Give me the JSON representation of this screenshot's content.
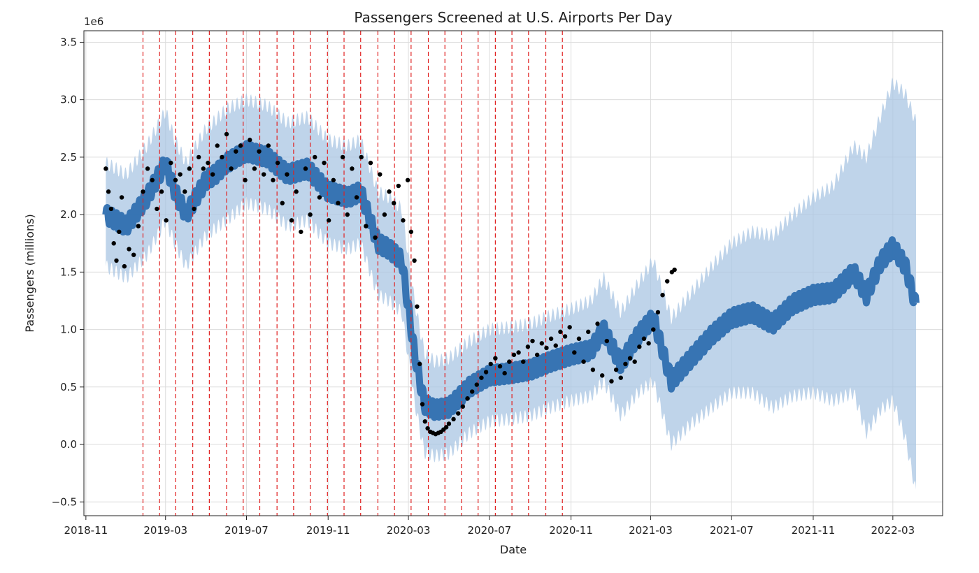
{
  "chart_data": {
    "type": "scatter",
    "title": "Passengers Screened at U.S. Airports Per Day",
    "xlabel": "Date",
    "ylabel": "Passengers (millions)",
    "y_offset_label": "1e6",
    "grid": true,
    "x_axis": {
      "type": "date",
      "range": [
        "2018-10-29",
        "2022-05-15"
      ],
      "ticks": [
        "2018-11-01",
        "2019-03-01",
        "2019-07-01",
        "2019-11-01",
        "2020-03-01",
        "2020-07-01",
        "2020-11-01",
        "2021-03-01",
        "2021-07-01",
        "2021-11-01",
        "2022-03-01"
      ],
      "tick_labels": [
        "2018-11",
        "2019-03",
        "2019-07",
        "2019-11",
        "2020-03",
        "2020-07",
        "2020-11",
        "2021-03",
        "2021-07",
        "2021-11",
        "2022-03"
      ]
    },
    "y_axis": {
      "range": [
        -0.62,
        3.6
      ],
      "ticks": [
        -0.5,
        0.0,
        0.5,
        1.0,
        1.5,
        2.0,
        2.5,
        3.0,
        3.5
      ],
      "tick_labels": [
        "−0.5",
        "0.0",
        "0.5",
        "1.0",
        "1.5",
        "2.0",
        "2.5",
        "3.0",
        "3.5"
      ]
    },
    "changepoints": [
      "2019-01-26",
      "2019-02-20",
      "2019-03-16",
      "2019-04-11",
      "2019-05-06",
      "2019-06-01",
      "2019-06-26",
      "2019-07-21",
      "2019-08-16",
      "2019-09-10",
      "2019-10-05",
      "2019-10-31",
      "2019-11-25",
      "2019-12-20",
      "2020-01-15",
      "2020-02-09",
      "2020-03-05",
      "2020-03-31",
      "2020-04-25",
      "2020-05-20",
      "2020-06-14",
      "2020-07-10",
      "2020-08-04",
      "2020-08-29",
      "2020-09-24",
      "2020-10-19"
    ],
    "series": [
      {
        "kind": "observed",
        "color": "#000000",
        "x": [
          "2018-12-01",
          "2018-12-05",
          "2018-12-09",
          "2018-12-13",
          "2018-12-17",
          "2018-12-21",
          "2018-12-25",
          "2018-12-29",
          "2019-01-05",
          "2019-01-12",
          "2019-01-19",
          "2019-01-26",
          "2019-02-02",
          "2019-02-09",
          "2019-02-16",
          "2019-02-23",
          "2019-03-02",
          "2019-03-09",
          "2019-03-16",
          "2019-03-23",
          "2019-03-30",
          "2019-04-06",
          "2019-04-13",
          "2019-04-20",
          "2019-04-27",
          "2019-05-04",
          "2019-05-11",
          "2019-05-18",
          "2019-05-25",
          "2019-06-01",
          "2019-06-08",
          "2019-06-15",
          "2019-06-22",
          "2019-06-29",
          "2019-07-06",
          "2019-07-13",
          "2019-07-20",
          "2019-07-27",
          "2019-08-03",
          "2019-08-10",
          "2019-08-17",
          "2019-08-24",
          "2019-08-31",
          "2019-09-07",
          "2019-09-14",
          "2019-09-21",
          "2019-09-28",
          "2019-10-05",
          "2019-10-12",
          "2019-10-19",
          "2019-10-26",
          "2019-11-02",
          "2019-11-09",
          "2019-11-16",
          "2019-11-23",
          "2019-11-30",
          "2019-12-07",
          "2019-12-14",
          "2019-12-21",
          "2019-12-28",
          "2020-01-04",
          "2020-01-11",
          "2020-01-18",
          "2020-01-25",
          "2020-02-01",
          "2020-02-08",
          "2020-02-15",
          "2020-02-22",
          "2020-02-29",
          "2020-03-05",
          "2020-03-10",
          "2020-03-14",
          "2020-03-18",
          "2020-03-22",
          "2020-03-26",
          "2020-03-30",
          "2020-04-03",
          "2020-04-07",
          "2020-04-11",
          "2020-04-15",
          "2020-04-19",
          "2020-04-23",
          "2020-04-27",
          "2020-05-01",
          "2020-05-08",
          "2020-05-15",
          "2020-05-22",
          "2020-05-29",
          "2020-06-05",
          "2020-06-12",
          "2020-06-19",
          "2020-06-26",
          "2020-07-03",
          "2020-07-10",
          "2020-07-17",
          "2020-07-24",
          "2020-07-31",
          "2020-08-07",
          "2020-08-14",
          "2020-08-21",
          "2020-08-28",
          "2020-09-04",
          "2020-09-11",
          "2020-09-18",
          "2020-09-25",
          "2020-10-02",
          "2020-10-09",
          "2020-10-16",
          "2020-10-23",
          "2020-10-30",
          "2020-11-06",
          "2020-11-13",
          "2020-11-20",
          "2020-11-27",
          "2020-12-04",
          "2020-12-11",
          "2020-12-18",
          "2020-12-25",
          "2021-01-01",
          "2021-01-08",
          "2021-01-15",
          "2021-01-22",
          "2021-01-29",
          "2021-02-05",
          "2021-02-12",
          "2021-02-19",
          "2021-02-26",
          "2021-03-05",
          "2021-03-12",
          "2021-03-19",
          "2021-03-26",
          "2021-04-02",
          "2021-04-06"
        ],
        "y": [
          2.4,
          2.2,
          2.05,
          1.75,
          1.6,
          1.85,
          2.15,
          1.55,
          1.7,
          1.65,
          1.9,
          2.2,
          2.4,
          2.3,
          2.05,
          2.2,
          1.95,
          2.45,
          2.3,
          2.35,
          2.2,
          2.4,
          2.05,
          2.5,
          2.4,
          2.45,
          2.35,
          2.6,
          2.5,
          2.7,
          2.4,
          2.55,
          2.6,
          2.3,
          2.65,
          2.4,
          2.55,
          2.35,
          2.6,
          2.3,
          2.45,
          2.1,
          2.35,
          1.95,
          2.2,
          1.85,
          2.4,
          2.0,
          2.5,
          2.15,
          2.45,
          1.95,
          2.3,
          2.1,
          2.5,
          2.0,
          2.4,
          2.15,
          2.5,
          1.9,
          2.45,
          1.8,
          2.35,
          2.0,
          2.2,
          2.1,
          2.25,
          1.95,
          2.3,
          1.85,
          1.6,
          1.2,
          0.7,
          0.35,
          0.2,
          0.14,
          0.11,
          0.1,
          0.09,
          0.1,
          0.11,
          0.13,
          0.15,
          0.18,
          0.22,
          0.27,
          0.33,
          0.4,
          0.46,
          0.52,
          0.58,
          0.63,
          0.7,
          0.75,
          0.68,
          0.62,
          0.72,
          0.78,
          0.8,
          0.72,
          0.85,
          0.9,
          0.78,
          0.88,
          0.84,
          0.92,
          0.86,
          0.98,
          0.94,
          1.02,
          0.8,
          0.92,
          0.72,
          0.98,
          0.65,
          1.05,
          0.6,
          0.9,
          0.55,
          0.65,
          0.58,
          0.7,
          0.75,
          0.72,
          0.85,
          0.92,
          0.88,
          1.0,
          1.15,
          1.3,
          1.42,
          1.5,
          1.52
        ]
      },
      {
        "kind": "forecast",
        "name": "yhat",
        "color": "#2f6fb0",
        "x": [
          "2018-12-01",
          "2019-01-01",
          "2019-02-01",
          "2019-03-01",
          "2019-03-15",
          "2019-04-01",
          "2019-05-01",
          "2019-05-15",
          "2019-06-01",
          "2019-07-01",
          "2019-08-01",
          "2019-09-01",
          "2019-10-01",
          "2019-11-01",
          "2019-12-01",
          "2019-12-20",
          "2020-01-15",
          "2020-02-01",
          "2020-02-20",
          "2020-03-10",
          "2020-03-25",
          "2020-04-10",
          "2020-05-01",
          "2020-06-01",
          "2020-07-01",
          "2020-08-01",
          "2020-09-01",
          "2020-10-01",
          "2020-11-01",
          "2020-12-01",
          "2020-12-20",
          "2021-01-15",
          "2021-02-10",
          "2021-03-05",
          "2021-04-01",
          "2021-05-01",
          "2021-06-01",
          "2021-07-01",
          "2021-08-01",
          "2021-09-01",
          "2021-10-01",
          "2021-11-01",
          "2021-12-01",
          "2022-01-01",
          "2022-01-20",
          "2022-02-10",
          "2022-03-01",
          "2022-03-20",
          "2022-04-05"
        ],
        "y": [
          2.0,
          1.9,
          2.15,
          2.45,
          2.2,
          2.0,
          2.3,
          2.35,
          2.45,
          2.55,
          2.5,
          2.35,
          2.4,
          2.2,
          2.15,
          2.2,
          1.75,
          1.7,
          1.6,
          0.8,
          0.35,
          0.3,
          0.32,
          0.5,
          0.6,
          0.62,
          0.65,
          0.72,
          0.78,
          0.82,
          1.0,
          0.7,
          0.95,
          1.1,
          0.55,
          0.75,
          0.95,
          1.1,
          1.15,
          1.05,
          1.22,
          1.3,
          1.32,
          1.5,
          1.3,
          1.58,
          1.72,
          1.55,
          1.2
        ],
        "lower": [
          1.55,
          1.45,
          1.65,
          1.95,
          1.75,
          1.55,
          1.82,
          1.88,
          1.95,
          2.1,
          2.05,
          1.9,
          1.95,
          1.75,
          1.7,
          1.75,
          1.3,
          1.25,
          1.15,
          0.38,
          -0.07,
          -0.1,
          -0.08,
          0.1,
          0.2,
          0.22,
          0.25,
          0.32,
          0.38,
          0.42,
          0.55,
          0.25,
          0.45,
          0.55,
          0.0,
          0.18,
          0.32,
          0.45,
          0.45,
          0.32,
          0.42,
          0.45,
          0.38,
          0.45,
          0.1,
          0.3,
          0.38,
          0.05,
          -0.42
        ],
        "upper": [
          2.45,
          2.35,
          2.6,
          2.9,
          2.65,
          2.45,
          2.75,
          2.82,
          2.92,
          3.0,
          2.95,
          2.8,
          2.85,
          2.65,
          2.6,
          2.65,
          2.2,
          2.15,
          2.05,
          1.25,
          0.8,
          0.72,
          0.75,
          0.9,
          1.0,
          1.02,
          1.05,
          1.12,
          1.18,
          1.25,
          1.45,
          1.15,
          1.4,
          1.6,
          1.1,
          1.32,
          1.55,
          1.75,
          1.85,
          1.82,
          2.0,
          2.15,
          2.25,
          2.6,
          2.5,
          2.85,
          3.15,
          3.05,
          2.8
        ]
      }
    ]
  }
}
